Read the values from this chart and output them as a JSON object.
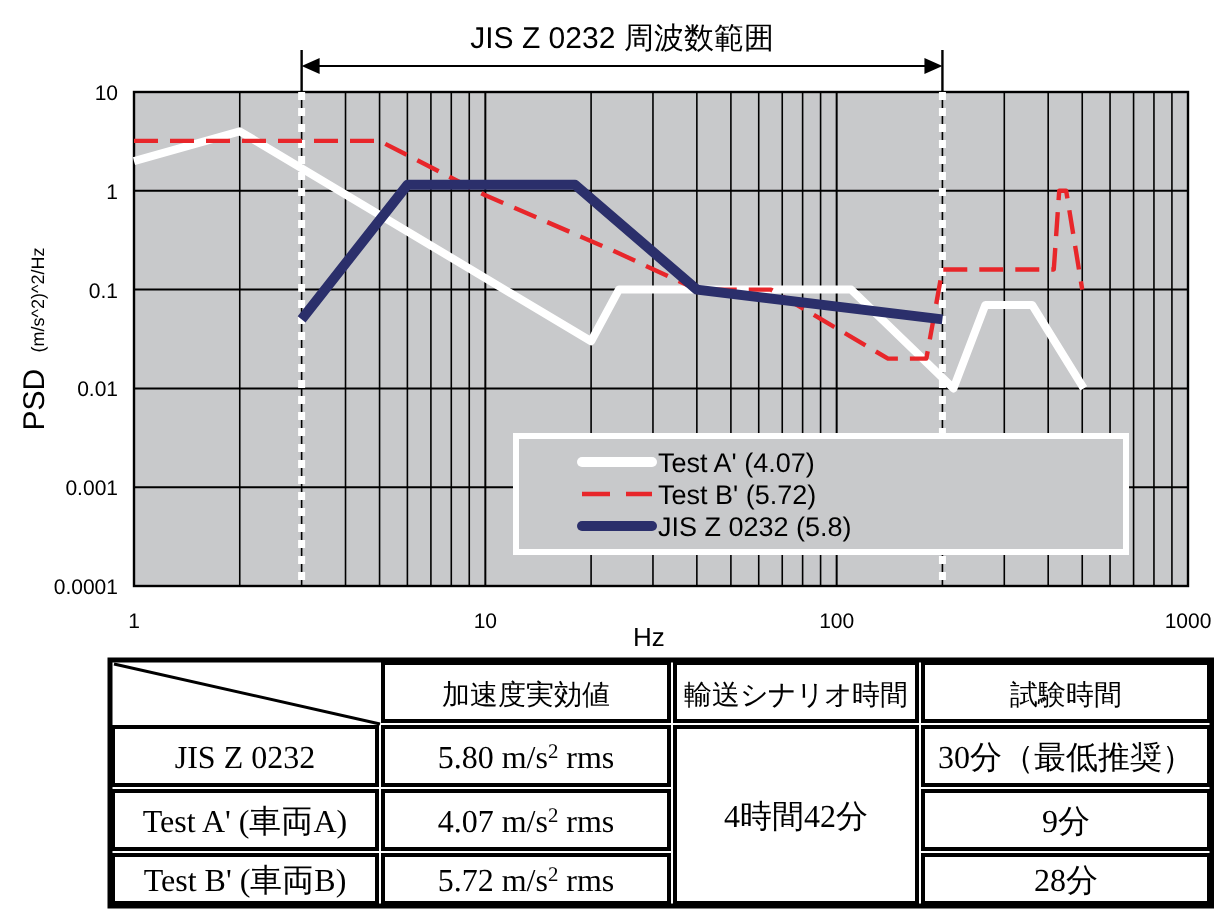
{
  "chart_data": {
    "type": "line",
    "xlabel": "Hz",
    "ylabel": "PSD (m/s^2)^2/Hz",
    "log": "xy",
    "xlim": [
      1,
      1000
    ],
    "xticks": [
      1,
      10,
      100,
      1000
    ],
    "ylim": [
      0.0001,
      10
    ],
    "yticks": [
      {
        "value": 0.0001,
        "label": "0.0001"
      },
      {
        "value": 0.001,
        "label": "0.001"
      },
      {
        "value": 0.01,
        "label": "0.01"
      },
      {
        "value": 0.1,
        "label": "0.1"
      },
      {
        "value": 1,
        "label": "1"
      },
      {
        "value": 10,
        "label": "10"
      }
    ],
    "grid": true,
    "legend": "bottom right",
    "series": [
      {
        "name": "Test A' (4.07)",
        "color": "#ffffff",
        "line_style": "solid",
        "x": [
          1,
          2,
          20,
          24,
          110,
          215,
          265,
          360,
          505
        ],
        "values": [
          2,
          4,
          0.03,
          0.1,
          0.1,
          0.01,
          0.07,
          0.07,
          0.01
        ]
      },
      {
        "name": "Test B' (5.72)",
        "color": "#e8262a",
        "line_style": "dashed",
        "x": [
          1,
          5,
          10,
          23,
          40,
          65,
          140,
          180,
          200,
          415,
          430,
          450,
          500
        ],
        "values": [
          3.2,
          3.2,
          0.9,
          0.25,
          0.1,
          0.1,
          0.02,
          0.02,
          0.16,
          0.16,
          1,
          1,
          0.1
        ]
      },
      {
        "name": "JIS Z 0232 (5.8)",
        "color": "#2b2f6b",
        "line_style": "solid",
        "x": [
          3,
          6,
          18,
          40,
          200
        ],
        "values": [
          0.05,
          1.15,
          1.15,
          0.1,
          0.05
        ]
      }
    ],
    "ref_lines": [
      {
        "axis": "x",
        "value": 3,
        "color": "#ffffff",
        "line_style": "dotted"
      },
      {
        "axis": "x",
        "value": 200,
        "color": "#ffffff",
        "line_style": "dotted"
      }
    ],
    "annotations": [
      "JIS Z 0232 周波数範囲",
      "加速度実効値",
      "輸送シナリオ時間",
      "試験時間",
      "JIS Z 0232",
      "5.80 m/s$^{2}$ rms",
      "4時間42分",
      "30分（最低推奨）",
      "Test A' (車両A)",
      "4.07 m/s$^{2}$ rms",
      "9分",
      "Test B' (車両B)",
      "5.72 m/s$^{2}$ rms",
      "28分"
    ]
  }
}
